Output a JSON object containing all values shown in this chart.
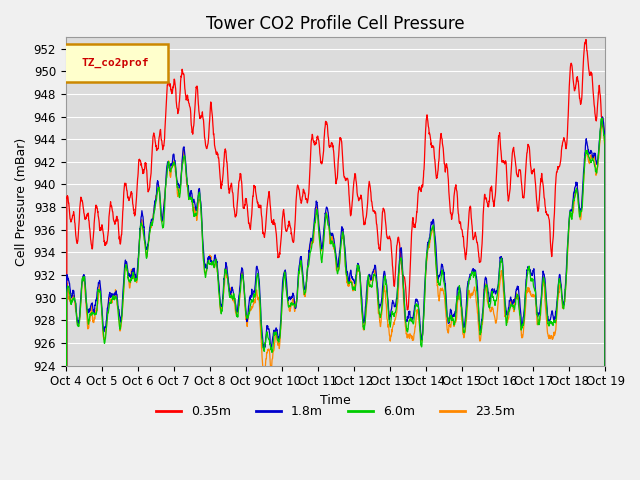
{
  "title": "Tower CO2 Profile Cell Pressure",
  "ylabel": "Cell Pressure (mBar)",
  "xlabel": "Time",
  "ylim": [
    924,
    953
  ],
  "yticks": [
    924,
    926,
    928,
    930,
    932,
    934,
    936,
    938,
    940,
    942,
    944,
    946,
    948,
    950,
    952
  ],
  "x_labels": [
    "Oct 4",
    "Oct 5",
    "Oct 6",
    "Oct 7",
    "Oct 8",
    "Oct 9",
    "Oct 10",
    "Oct 11",
    "Oct 12",
    "Oct 13",
    "Oct 14",
    "Oct 15",
    "Oct 16",
    "Oct 17",
    "Oct 18",
    "Oct 19"
  ],
  "colors": {
    "0.35m": "#ff0000",
    "1.8m": "#0000cc",
    "6.0m": "#00cc00",
    "23.5m": "#ff8800"
  },
  "legend_label": "TZ_co2prof",
  "legend_box_color": "#ffffcc",
  "legend_box_edge": "#cc8800",
  "bg_color": "#dcdcdc",
  "fig_color": "#f0f0f0",
  "grid_color": "#ffffff",
  "title_fontsize": 12,
  "label_fontsize": 9,
  "tick_fontsize": 8.5
}
